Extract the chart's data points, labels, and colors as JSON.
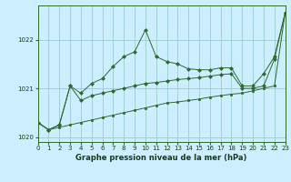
{
  "x": [
    0,
    1,
    2,
    3,
    4,
    5,
    6,
    7,
    8,
    9,
    10,
    11,
    12,
    13,
    14,
    15,
    16,
    17,
    18,
    19,
    20,
    21,
    22,
    23
  ],
  "line_bottom": [
    1020.3,
    1020.15,
    1020.2,
    1020.25,
    1020.3,
    1020.35,
    1020.4,
    1020.45,
    1020.5,
    1020.55,
    1020.6,
    1020.65,
    1020.7,
    1020.72,
    1020.75,
    1020.78,
    1020.82,
    1020.85,
    1020.88,
    1020.9,
    1020.95,
    1021.0,
    1021.05,
    1022.55
  ],
  "line_mid": [
    1020.3,
    1020.15,
    1020.25,
    1021.05,
    1020.75,
    1020.85,
    1020.9,
    1020.95,
    1021.0,
    1021.05,
    1021.1,
    1021.12,
    1021.15,
    1021.18,
    1021.2,
    1021.22,
    1021.25,
    1021.28,
    1021.3,
    1021.0,
    1021.0,
    1021.05,
    1021.6,
    1022.55
  ],
  "line_top": [
    1020.3,
    1020.15,
    1020.25,
    1021.05,
    1020.9,
    1021.1,
    1021.2,
    1021.45,
    1021.65,
    1021.75,
    1022.2,
    1021.65,
    1021.55,
    1021.5,
    1021.4,
    1021.38,
    1021.38,
    1021.42,
    1021.42,
    1021.05,
    1021.05,
    1021.3,
    1021.65,
    1022.55
  ],
  "bg_color": "#cceeff",
  "grid_color": "#99cccc",
  "line_color": "#2d6a2d",
  "xlabel": "Graphe pression niveau de la mer (hPa)",
  "ylim": [
    1019.9,
    1022.7
  ],
  "xlim": [
    0,
    23
  ],
  "yticks": [
    1020,
    1021,
    1022
  ],
  "xticks": [
    0,
    1,
    2,
    3,
    4,
    5,
    6,
    7,
    8,
    9,
    10,
    11,
    12,
    13,
    14,
    15,
    16,
    17,
    18,
    19,
    20,
    21,
    22,
    23
  ]
}
